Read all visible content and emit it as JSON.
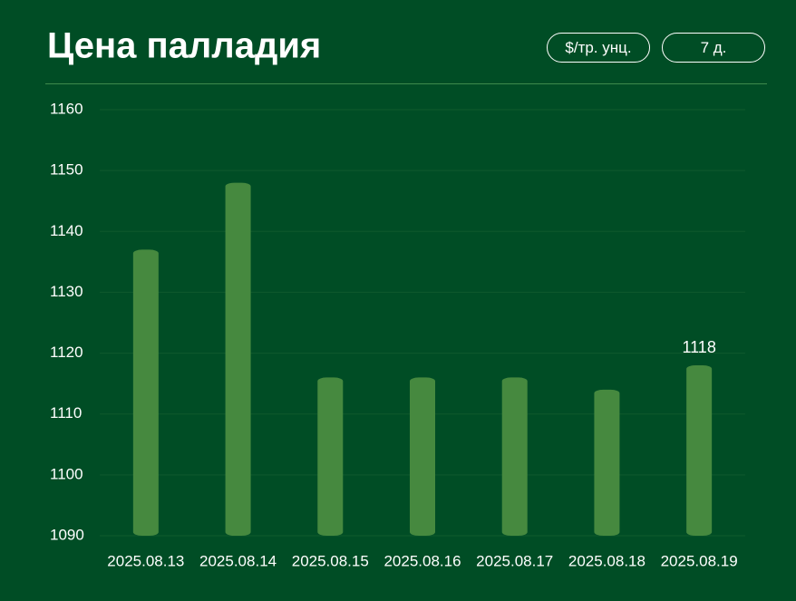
{
  "chart_data": {
    "type": "bar",
    "title": "Цена палладия",
    "categories": [
      "2025.08.13",
      "2025.08.14",
      "2025.08.15",
      "2025.08.16",
      "2025.08.17",
      "2025.08.18",
      "2025.08.19"
    ],
    "values": [
      1137,
      1148,
      1116,
      1116,
      1116,
      1114,
      1118
    ],
    "color": "#46893f",
    "ylim": [
      1090,
      1160
    ],
    "yticks": [
      1090,
      1100,
      1110,
      1120,
      1130,
      1140,
      1150,
      1160
    ],
    "grid": true,
    "data_label": "last"
  },
  "controls": {
    "unit": "$/тр. унц.",
    "period": "7 д."
  }
}
